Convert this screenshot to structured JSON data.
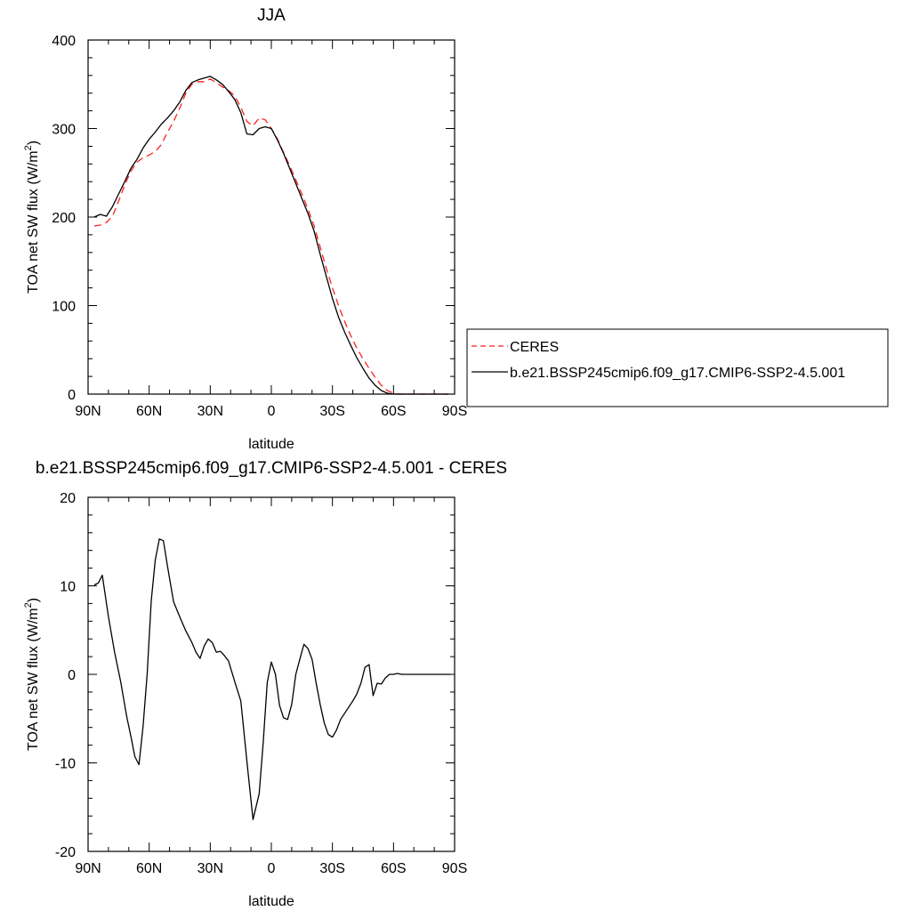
{
  "chart_data": [
    {
      "type": "line",
      "title": "JJA",
      "xlabel": "latitude",
      "ylabel": "TOA net SW flux (W/m",
      "ylabel_sup": "2",
      "ylabel_close": ")",
      "xlim": [
        90,
        -90
      ],
      "ylim": [
        0,
        400
      ],
      "xticks": [
        90,
        60,
        30,
        0,
        -30,
        -60,
        -90
      ],
      "xtick_labels": [
        "90N",
        "60N",
        "30N",
        "0",
        "30S",
        "60S",
        "90S"
      ],
      "yticks": [
        0,
        100,
        200,
        300,
        400
      ],
      "ytick_labels": [
        "0",
        "100",
        "200",
        "300",
        "400"
      ],
      "legend_position": "right",
      "series": [
        {
          "name": "CERES",
          "color": "#ff2020",
          "dash": "dashed",
          "x": [
            87,
            84,
            81,
            78,
            75,
            72,
            69,
            66,
            63,
            60,
            57,
            54,
            51,
            48,
            45,
            42,
            39,
            36,
            33,
            30,
            27,
            24,
            21,
            18,
            15,
            12,
            9,
            6,
            3,
            0,
            -3,
            -6,
            -9,
            -12,
            -15,
            -18,
            -21,
            -24,
            -27,
            -30,
            -33,
            -36,
            -39,
            -42,
            -45,
            -48,
            -51,
            -54,
            -57,
            -60,
            -63,
            -66,
            -69,
            -72,
            -75,
            -78,
            -81,
            -84,
            -87
          ],
          "values": [
            190,
            191,
            194,
            201,
            218,
            236,
            252,
            262,
            267,
            270,
            274,
            282,
            296,
            308,
            323,
            340,
            350,
            353,
            353,
            356,
            352,
            347,
            343,
            337,
            324,
            308,
            303,
            312,
            310,
            300,
            288,
            273,
            258,
            242,
            226,
            209,
            190,
            166,
            142,
            120,
            100,
            82,
            66,
            52,
            40,
            29,
            19,
            10,
            4,
            1,
            0,
            0,
            0,
            0,
            0,
            0,
            0,
            0,
            0
          ]
        },
        {
          "name": "b.e21.BSSP245cmip6.f09_g17.CMIP6-SSP2-4.5.001",
          "color": "#000000",
          "dash": "solid",
          "x": [
            87,
            84,
            81,
            78,
            75,
            72,
            69,
            66,
            63,
            60,
            57,
            54,
            51,
            48,
            45,
            42,
            39,
            36,
            33,
            30,
            27,
            24,
            21,
            18,
            15,
            12,
            9,
            6,
            3,
            0,
            -3,
            -6,
            -9,
            -12,
            -15,
            -18,
            -21,
            -24,
            -27,
            -30,
            -33,
            -36,
            -39,
            -42,
            -45,
            -48,
            -51,
            -54,
            -57,
            -60,
            -63,
            -66,
            -69,
            -72,
            -75,
            -78,
            -81,
            -84,
            -87
          ],
          "values": [
            200,
            203,
            201,
            212,
            226,
            240,
            255,
            265,
            278,
            288,
            296,
            305,
            312,
            320,
            330,
            343,
            352,
            355,
            357,
            359,
            355,
            350,
            342,
            333,
            318,
            294,
            293,
            300,
            302,
            300,
            287,
            272,
            255,
            238,
            221,
            204,
            184,
            158,
            133,
            108,
            87,
            70,
            55,
            41,
            29,
            18,
            10,
            4,
            1,
            0,
            0,
            0,
            0,
            0,
            0,
            0,
            0,
            0,
            0
          ]
        }
      ]
    },
    {
      "type": "line",
      "title": "b.e21.BSSP245cmip6.f09_g17.CMIP6-SSP2-4.5.001 - CERES",
      "xlabel": "latitude",
      "ylabel": "TOA net SW flux (W/m",
      "ylabel_sup": "2",
      "ylabel_close": ")",
      "xlim": [
        90,
        -90
      ],
      "ylim": [
        -20,
        20
      ],
      "xticks": [
        90,
        60,
        30,
        0,
        -30,
        -60,
        -90
      ],
      "xtick_labels": [
        "90N",
        "60N",
        "30N",
        "0",
        "30S",
        "60S",
        "90S"
      ],
      "yticks": [
        -20,
        -10,
        0,
        10,
        20
      ],
      "ytick_labels": [
        "-20",
        "-10",
        "0",
        "10",
        "20"
      ],
      "series": [
        {
          "name": "",
          "color": "#000000",
          "dash": "solid",
          "x": [
            87,
            85,
            83,
            80,
            77,
            74,
            71,
            69,
            67,
            65,
            63,
            61,
            59,
            57,
            55,
            53,
            51,
            48,
            45,
            42,
            39,
            37,
            35,
            33,
            31,
            29,
            27,
            25,
            23,
            21,
            18,
            15,
            12,
            9,
            6,
            4,
            2,
            0,
            -2,
            -4,
            -6,
            -8,
            -10,
            -12,
            -14,
            -16,
            -18,
            -20,
            -22,
            -24,
            -26,
            -28,
            -30,
            -32,
            -34,
            -36,
            -38,
            -40,
            -42,
            -44,
            -46,
            -48,
            -50,
            -52,
            -54,
            -56,
            -58,
            -60,
            -62,
            -64,
            -66,
            -68,
            -70,
            -72,
            -74,
            -76,
            -78,
            -80,
            -82,
            -84,
            -86,
            -88
          ],
          "values": [
            10.1,
            10.3,
            11.2,
            6.5,
            2.5,
            -0.8,
            -4.8,
            -7.0,
            -9.3,
            -10.2,
            -5.9,
            0,
            8.3,
            12.9,
            15.3,
            15.1,
            12.2,
            8.2,
            6.5,
            4.9,
            3.6,
            2.5,
            1.8,
            3.2,
            4.0,
            3.6,
            2.5,
            2.6,
            2.1,
            1.5,
            -0.8,
            -3.0,
            -9.8,
            -16.4,
            -13.5,
            -7.8,
            -0.9,
            1.4,
            0,
            -3.5,
            -4.9,
            -5.1,
            -3.4,
            0,
            1.7,
            3.4,
            2.9,
            1.7,
            -1.0,
            -3.4,
            -5.5,
            -6.8,
            -7.1,
            -6.3,
            -5.1,
            -4.4,
            -3.7,
            -3.0,
            -2.2,
            -1.0,
            0.8,
            1.1,
            -2.4,
            -1.0,
            -1.1,
            -0.4,
            0,
            0,
            0.1,
            0,
            0,
            0,
            0,
            0,
            0,
            0,
            0,
            0,
            0,
            0,
            0,
            0
          ]
        }
      ]
    }
  ]
}
